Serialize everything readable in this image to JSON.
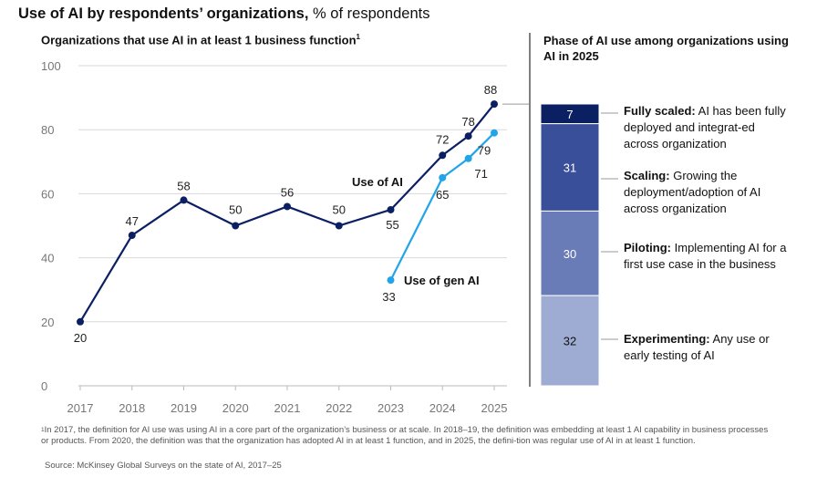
{
  "title": {
    "bold": "Use of AI by respondents’ organizations,",
    "normal": "% of respondents"
  },
  "left_subtitle": "Organizations that use AI in at least 1 business function",
  "left_subtitle_mark": "1",
  "right_subtitle": "Phase of AI use among organizations using AI in 2025",
  "chart_data": [
    {
      "type": "line",
      "title": "Organizations that use AI in at least 1 business function",
      "x_ticks": [
        "2017",
        "2018",
        "2019",
        "2020",
        "2021",
        "2022",
        "2023",
        "2024",
        "2025"
      ],
      "y_ticks": [
        "0",
        "20",
        "40",
        "60",
        "80",
        "100"
      ],
      "ylim": [
        0,
        100
      ],
      "grid": "horizontal",
      "series": [
        {
          "name": "Use of AI",
          "color": "#0b1f63",
          "points": [
            {
              "x": 2017,
              "y": 20,
              "label": "20"
            },
            {
              "x": 2018,
              "y": 47,
              "label": "47"
            },
            {
              "x": 2019,
              "y": 58,
              "label": "58"
            },
            {
              "x": 2020,
              "y": 50,
              "label": "50"
            },
            {
              "x": 2021,
              "y": 56,
              "label": "56"
            },
            {
              "x": 2022,
              "y": 50,
              "label": "50"
            },
            {
              "x": 2023,
              "y": 55,
              "label": "55"
            },
            {
              "x": 2024,
              "y": 72,
              "label": "72"
            },
            {
              "x": 2024.5,
              "y": 78,
              "label": "78"
            },
            {
              "x": 2025,
              "y": 88,
              "label": "88"
            }
          ]
        },
        {
          "name": "Use of gen AI",
          "color": "#21a5e8",
          "points": [
            {
              "x": 2023,
              "y": 33,
              "label": "33"
            },
            {
              "x": 2024,
              "y": 65,
              "label": "65"
            },
            {
              "x": 2024.5,
              "y": 71,
              "label": "71"
            },
            {
              "x": 2025,
              "y": 79,
              "label": "79"
            }
          ]
        }
      ]
    },
    {
      "type": "bar",
      "stacked": true,
      "title": "Phase of AI use among organizations using AI in 2025",
      "segments": [
        {
          "name": "Fully scaled",
          "value": 7,
          "label": "7",
          "color": "#0b1f63",
          "text_color": "#ffffff"
        },
        {
          "name": "Scaling",
          "value": 31,
          "label": "31",
          "color": "#3a4f9a",
          "text_color": "#ffffff"
        },
        {
          "name": "Piloting",
          "value": 30,
          "label": "30",
          "color": "#6a7cb7",
          "text_color": "#ffffff"
        },
        {
          "name": "Experimenting",
          "value": 32,
          "label": "32",
          "color": "#9eabd2",
          "text_color": "#111111"
        }
      ]
    }
  ],
  "phases": [
    {
      "bold": "Fully scaled:",
      "text": "AI has been fully deployed and integrat-ed across organization"
    },
    {
      "bold": "Scaling:",
      "text": "Growing the deployment/adoption of AI across organization"
    },
    {
      "bold": "Piloting:",
      "text": "Implementing AI for a first use case in the business"
    },
    {
      "bold": "Experimenting:",
      "text": "Any use or early testing of AI"
    }
  ],
  "footnote_mark": "1",
  "footnote": "In 2017, the definition for AI use was using AI in a core part of the organization’s business or at scale. In 2018–19, the definition was embedding at least 1 AI capability in business processes or products. From 2020, the definition was that the organization has adopted AI in at least 1 function, and in 2025, the defini-tion was regular use of AI in at least 1 function.",
  "source": "Source: McKinsey Global Surveys on the state of AI, 2017–25",
  "colors": {
    "grid": "#d9d9d9",
    "axis_text": "#777777",
    "divider": "#555555",
    "connector": "#999999"
  }
}
